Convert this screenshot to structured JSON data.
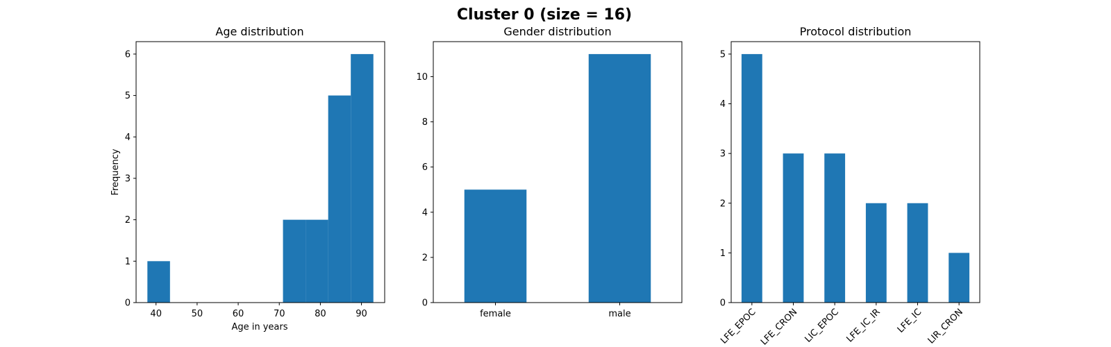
{
  "figure": {
    "suptitle": "Cluster 0 (size = 16)",
    "bar_color": "#1f77b4"
  },
  "chart_data": [
    {
      "type": "bar",
      "subtype": "histogram",
      "title": "Age distribution",
      "xlabel": "Age in years",
      "ylabel": "Frequency",
      "bins": [
        {
          "x0": 37.9,
          "x1": 43.4,
          "count": 1
        },
        {
          "x0": 43.4,
          "x1": 48.9,
          "count": 0
        },
        {
          "x0": 48.9,
          "x1": 54.4,
          "count": 0
        },
        {
          "x0": 54.4,
          "x1": 59.9,
          "count": 0
        },
        {
          "x0": 59.9,
          "x1": 65.4,
          "count": 0
        },
        {
          "x0": 65.4,
          "x1": 70.9,
          "count": 0
        },
        {
          "x0": 70.9,
          "x1": 76.4,
          "count": 2
        },
        {
          "x0": 76.4,
          "x1": 81.9,
          "count": 2
        },
        {
          "x0": 81.9,
          "x1": 87.4,
          "count": 5
        },
        {
          "x0": 87.4,
          "x1": 92.9,
          "count": 6
        }
      ],
      "xlim": [
        35.15,
        95.65
      ],
      "ylim": [
        0,
        6.3
      ],
      "xticks": [
        40,
        50,
        60,
        70,
        80,
        90
      ],
      "yticks": [
        0,
        1,
        2,
        3,
        4,
        5,
        6
      ]
    },
    {
      "type": "bar",
      "title": "Gender distribution",
      "categories": [
        "female",
        "male"
      ],
      "values": [
        5,
        11
      ],
      "ylim": [
        0,
        11.55
      ],
      "yticks": [
        0,
        2,
        4,
        6,
        8,
        10
      ]
    },
    {
      "type": "bar",
      "title": "Protocol distribution",
      "categories": [
        "LFE_EPOC",
        "LFE_CRON",
        "LIC_EPOC",
        "LFE_IC_IR",
        "LFE_IC",
        "LIR_CRON"
      ],
      "values": [
        5,
        3,
        3,
        2,
        2,
        1
      ],
      "ylim": [
        0,
        5.25
      ],
      "yticks": [
        0,
        1,
        2,
        3,
        4,
        5
      ],
      "xtick_rotation": 45
    }
  ]
}
